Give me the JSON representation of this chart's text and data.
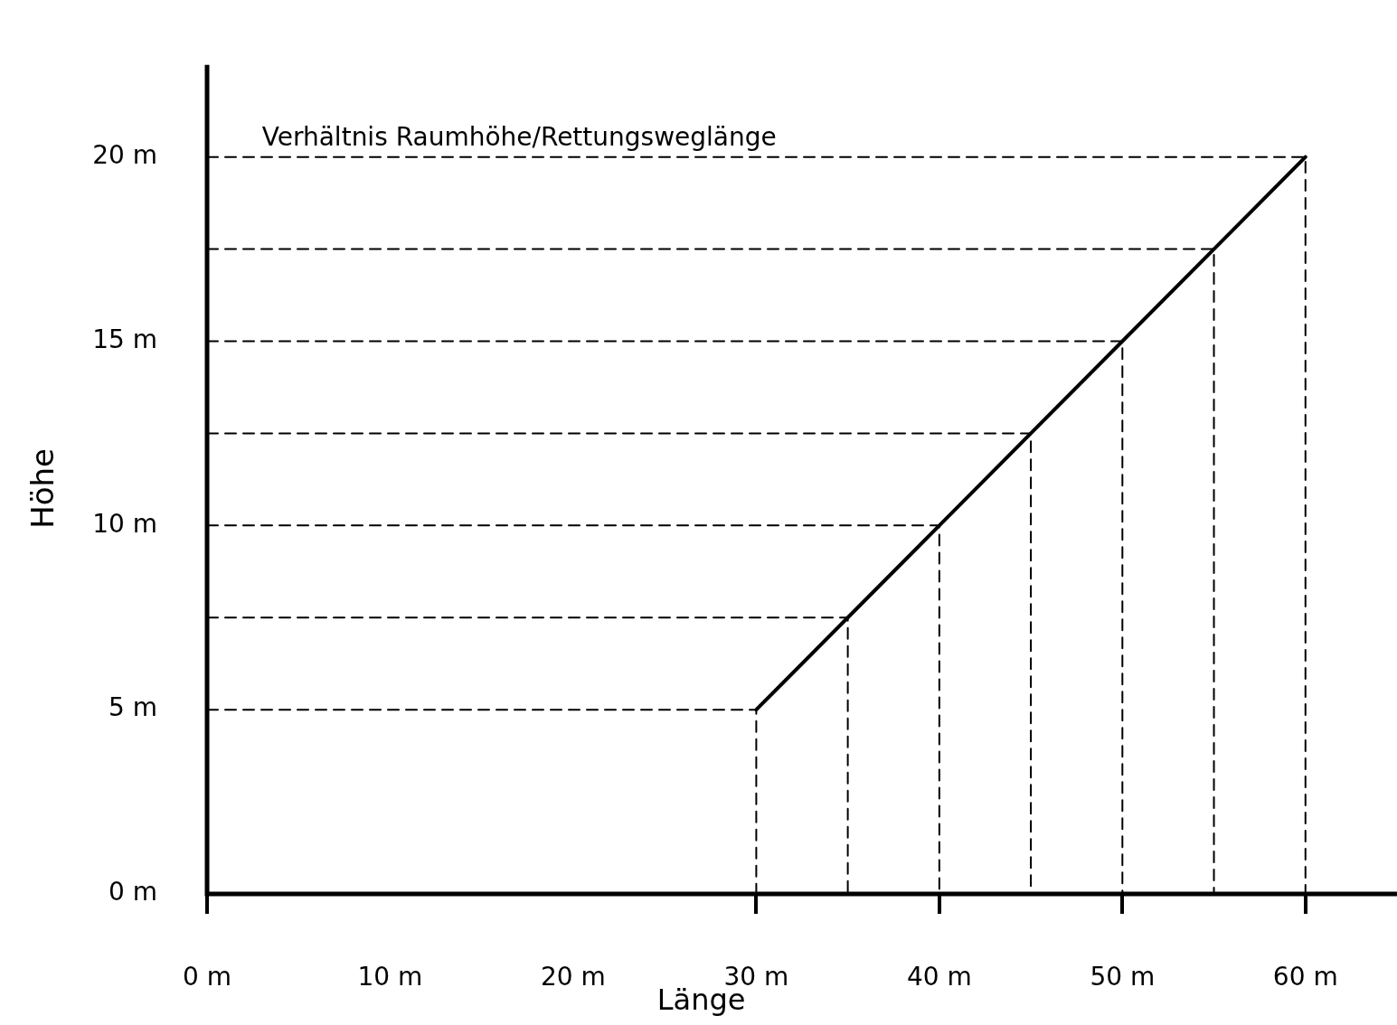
{
  "chart_data": {
    "type": "line",
    "title": "Verhältnis Raumhöhe/Rettungsweglänge",
    "xlabel": "Länge",
    "ylabel": "Höhe",
    "x": [
      30,
      35,
      40,
      45,
      50,
      55,
      60
    ],
    "series": [
      {
        "color": "#000000",
        "line_style": "solid",
        "values": [
          5,
          7.5,
          10,
          12.5,
          15,
          17.5,
          20
        ]
      },
      {
        "color": "#000000",
        "line_style": "dashed",
        "x": [
          0,
          30,
          30
        ],
        "values": [
          5,
          5,
          0
        ]
      },
      {
        "color": "#000000",
        "line_style": "dashed",
        "x": [
          0,
          35,
          35
        ],
        "values": [
          7.5,
          7.5,
          0
        ]
      },
      {
        "color": "#000000",
        "line_style": "dashed",
        "x": [
          0,
          40,
          40
        ],
        "values": [
          10,
          10,
          0
        ]
      },
      {
        "color": "#000000",
        "line_style": "dashed",
        "x": [
          0,
          45,
          45
        ],
        "values": [
          12.5,
          12.5,
          0
        ]
      },
      {
        "color": "#000000",
        "line_style": "dashed",
        "x": [
          0,
          50,
          50
        ],
        "values": [
          15,
          15,
          0
        ]
      },
      {
        "color": "#000000",
        "line_style": "dashed",
        "x": [
          0,
          55,
          55
        ],
        "values": [
          17.5,
          17.5,
          0
        ]
      },
      {
        "color": "#000000",
        "line_style": "dashed",
        "x": [
          0,
          60,
          60
        ],
        "values": [
          20,
          20,
          0
        ]
      }
    ],
    "xlim": [
      0,
      65
    ],
    "xticks": [
      {
        "value": 0,
        "label": "0 m"
      },
      {
        "value": 10,
        "label": "10 m"
      },
      {
        "value": 20,
        "label": "20 m"
      },
      {
        "value": 30,
        "label": "30 m"
      },
      {
        "value": 40,
        "label": "40 m"
      },
      {
        "value": 50,
        "label": "50 m"
      },
      {
        "value": 60,
        "label": "60 m"
      }
    ],
    "ylim": [
      0,
      22.5
    ],
    "yticks": [
      {
        "value": 0,
        "label": "0 m"
      },
      {
        "value": 5,
        "label": "5 m"
      },
      {
        "value": 10,
        "label": "10 m"
      },
      {
        "value": 15,
        "label": "15 m"
      },
      {
        "value": 20,
        "label": "20 m"
      }
    ],
    "grid": false,
    "legend": false,
    "marker": "none"
  }
}
